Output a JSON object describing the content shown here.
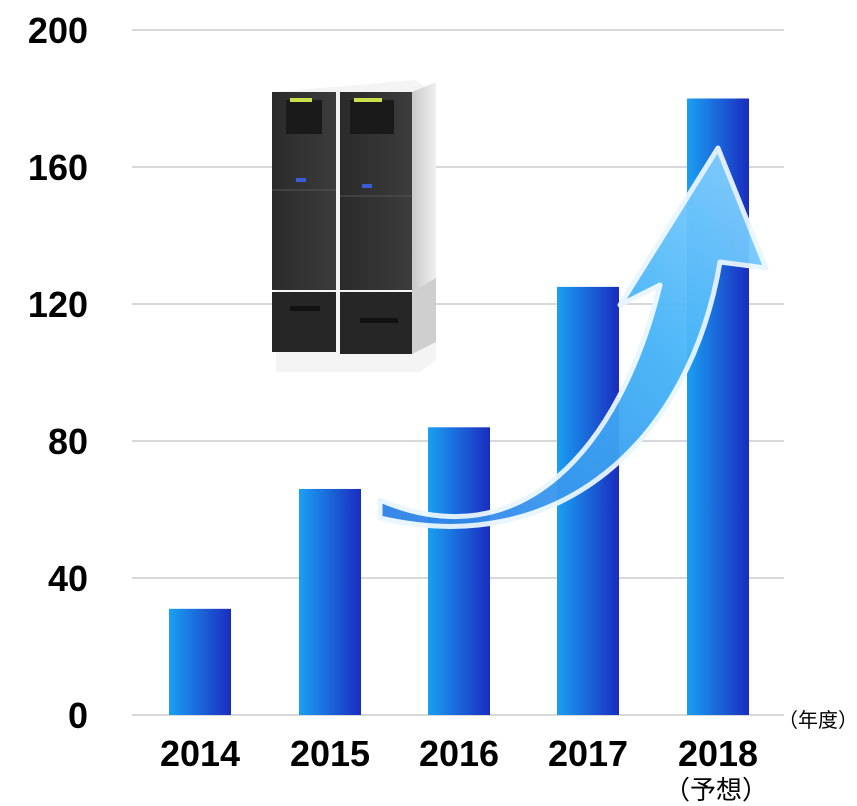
{
  "chart_data": {
    "type": "bar",
    "categories": [
      "2014",
      "2015",
      "2016",
      "2017",
      "2018"
    ],
    "category_sublabels": [
      "",
      "",
      "",
      "",
      "（予想）"
    ],
    "values": [
      31,
      66,
      84,
      125,
      180
    ],
    "ylim": [
      0,
      200
    ],
    "yticks": [
      0,
      40,
      80,
      120,
      160,
      200
    ],
    "x_unit_label": "（年度）",
    "grid": true,
    "colors": {
      "bar_light": "#1a9cf0",
      "bar_dark": "#1a2fc0",
      "grid": "#cccccc",
      "arrow": "#3aa8f5"
    },
    "decorations": [
      "upward-trend-arrow",
      "cash-machine-photo"
    ]
  }
}
